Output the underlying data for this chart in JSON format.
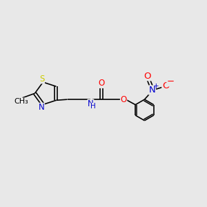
{
  "background_color": "#e8e8e8",
  "atom_colors": {
    "C": "#000000",
    "N": "#0000cd",
    "O": "#ff0000",
    "S": "#cccc00",
    "H": "#000000"
  },
  "bond_color": "#000000",
  "font_size": 8.5,
  "fig_size": [
    3.0,
    3.0
  ],
  "dpi": 100
}
